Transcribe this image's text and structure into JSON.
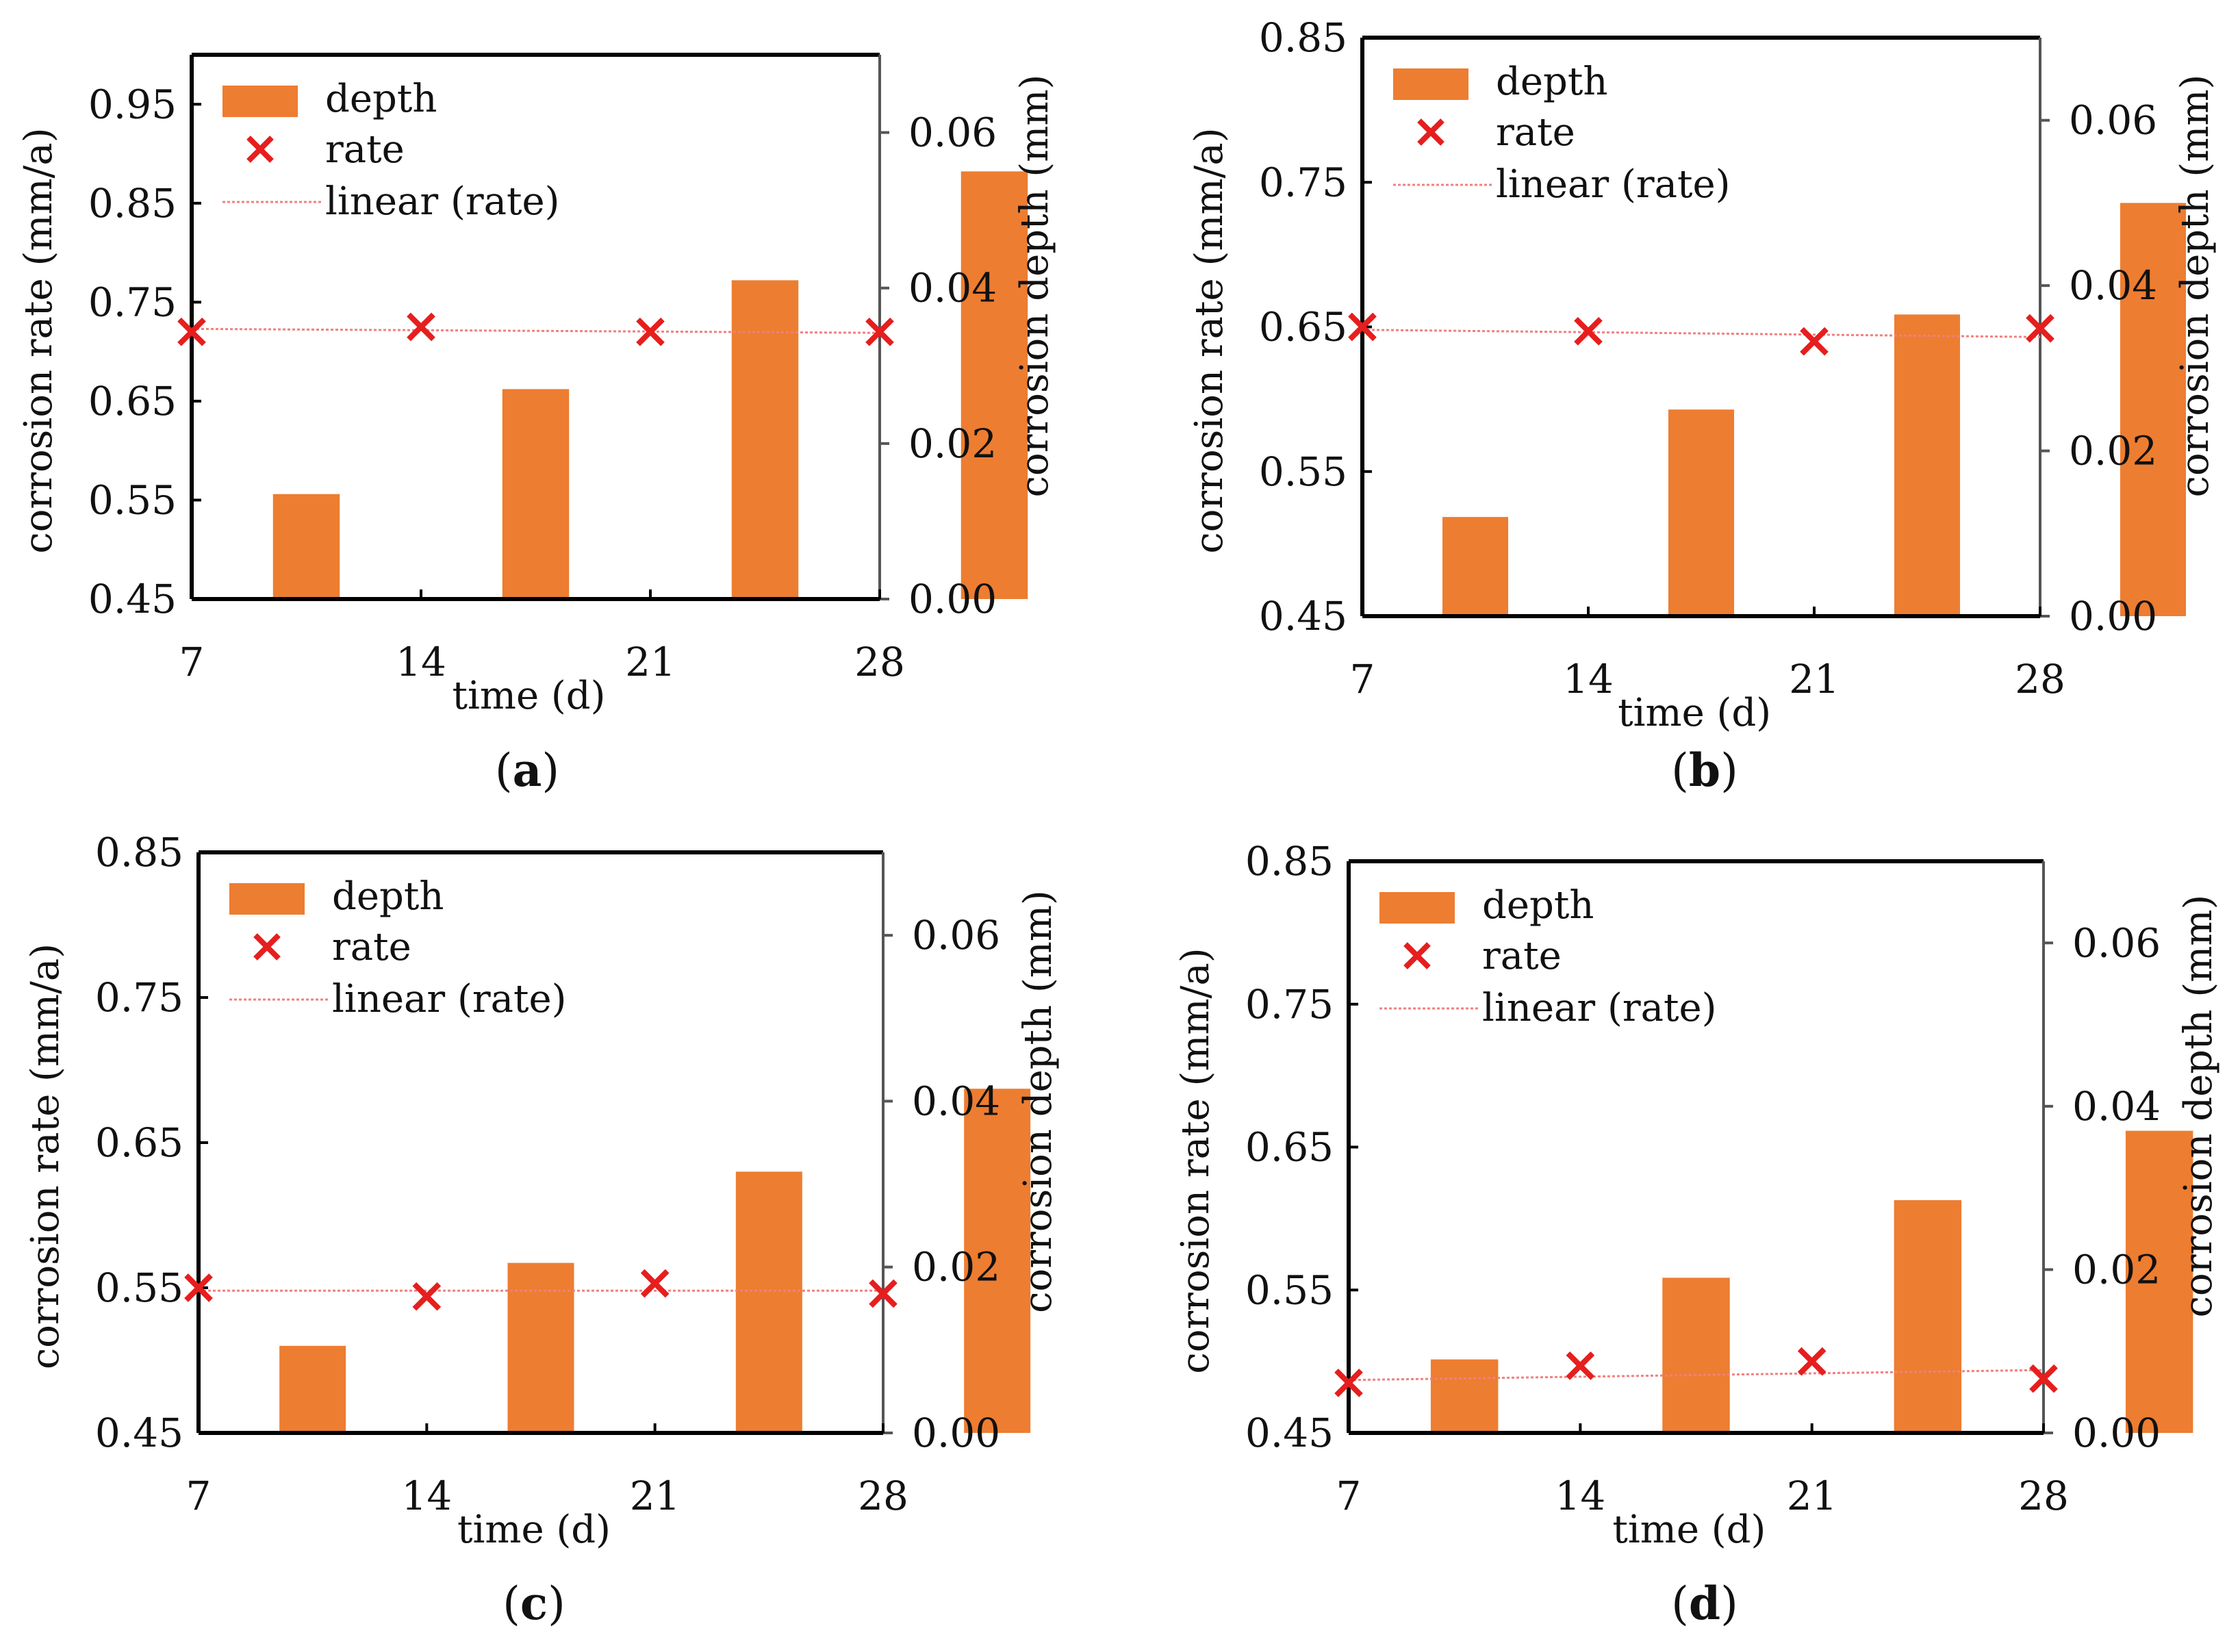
{
  "colors": {
    "bar": "#ED7D31",
    "rate_marker": "#E61E1E",
    "trend": "#F08080",
    "axis": "#000000"
  },
  "chart_data": [
    {
      "type": "bar+scatter",
      "caption_letter": "a",
      "x_ticks": [
        "7",
        "14",
        "21",
        "28"
      ],
      "xlabel": "time (d)",
      "ylabel_left": "corrosion rate (mm/a)",
      "ylabel_right": "corrosion depth (mm)",
      "ylim_left": [
        0.45,
        1.0
      ],
      "left_ticks": [
        "0.45",
        "0.55",
        "0.65",
        "0.75",
        "0.85",
        "0.95"
      ],
      "ylim_right": [
        0.0,
        0.07
      ],
      "right_ticks": [
        "0.00",
        "0.02",
        "0.04",
        "0.06"
      ],
      "grid": false,
      "legend": {
        "placement": "top-left",
        "entries": [
          "depth",
          "rate",
          "linear (rate)"
        ]
      },
      "depth": {
        "name": "depth",
        "x": [
          10.5,
          17.5,
          24.5,
          31.5
        ],
        "values": [
          0.0135,
          0.027,
          0.041,
          0.055
        ]
      },
      "rate": {
        "name": "rate",
        "x": [
          7,
          14,
          21,
          28
        ],
        "values": [
          0.72,
          0.725,
          0.72,
          0.72
        ]
      },
      "trend": {
        "name": "linear (rate)",
        "start": 0.723,
        "end": 0.719
      }
    },
    {
      "type": "bar+scatter",
      "caption_letter": "b",
      "x_ticks": [
        "7",
        "14",
        "21",
        "28"
      ],
      "xlabel": "time (d)",
      "ylabel_left": "corrosion rate (mm/a)",
      "ylabel_right": "corrosion depth (mm)",
      "ylim_left": [
        0.45,
        0.85
      ],
      "left_ticks": [
        "0.45",
        "0.55",
        "0.65",
        "0.75",
        "0.85"
      ],
      "ylim_right": [
        0.0,
        0.07
      ],
      "right_ticks": [
        "0.00",
        "0.02",
        "0.04",
        "0.06"
      ],
      "grid": false,
      "legend": {
        "placement": "top-left",
        "entries": [
          "depth",
          "rate",
          "linear (rate)"
        ]
      },
      "depth": {
        "name": "depth",
        "x": [
          10.5,
          17.5,
          24.5,
          31.5
        ],
        "values": [
          0.012,
          0.025,
          0.0365,
          0.05
        ]
      },
      "rate": {
        "name": "rate",
        "x": [
          7,
          14,
          21,
          28
        ],
        "values": [
          0.65,
          0.647,
          0.64,
          0.649
        ]
      },
      "trend": {
        "name": "linear (rate)",
        "start": 0.648,
        "end": 0.643
      }
    },
    {
      "type": "bar+scatter",
      "caption_letter": "c",
      "x_ticks": [
        "7",
        "14",
        "21",
        "28"
      ],
      "xlabel": "time (d)",
      "ylabel_left": "corrosion rate (mm/a)",
      "ylabel_right": "corrosion depth (mm)",
      "ylim_left": [
        0.45,
        0.85
      ],
      "left_ticks": [
        "0.45",
        "0.55",
        "0.65",
        "0.75",
        "0.85"
      ],
      "ylim_right": [
        0.0,
        0.07
      ],
      "right_ticks": [
        "0.00",
        "0.02",
        "0.04",
        "0.06"
      ],
      "grid": false,
      "legend": {
        "placement": "top-left",
        "entries": [
          "depth",
          "rate",
          "linear (rate)"
        ]
      },
      "depth": {
        "name": "depth",
        "x": [
          10.5,
          17.5,
          24.5,
          31.5
        ],
        "values": [
          0.0105,
          0.0205,
          0.0315,
          0.0415
        ]
      },
      "rate": {
        "name": "rate",
        "x": [
          7,
          14,
          21,
          28
        ],
        "values": [
          0.55,
          0.544,
          0.553,
          0.546
        ]
      },
      "trend": {
        "name": "linear (rate)",
        "start": 0.548,
        "end": 0.548
      }
    },
    {
      "type": "bar+scatter",
      "caption_letter": "d",
      "x_ticks": [
        "7",
        "14",
        "21",
        "28"
      ],
      "xlabel": "time (d)",
      "ylabel_left": "corrosion rate (mm/a)",
      "ylabel_right": "corrosion depth (mm)",
      "ylim_left": [
        0.45,
        0.85
      ],
      "left_ticks": [
        "0.45",
        "0.55",
        "0.65",
        "0.75",
        "0.85"
      ],
      "ylim_right": [
        0.0,
        0.07
      ],
      "right_ticks": [
        "0.00",
        "0.02",
        "0.04",
        "0.06"
      ],
      "grid": false,
      "legend": {
        "placement": "top-left",
        "entries": [
          "depth",
          "rate",
          "linear (rate)"
        ]
      },
      "depth": {
        "name": "depth",
        "x": [
          10.5,
          17.5,
          24.5,
          31.5
        ],
        "values": [
          0.009,
          0.019,
          0.0285,
          0.037
        ]
      },
      "rate": {
        "name": "rate",
        "x": [
          7,
          14,
          21,
          28
        ],
        "values": [
          0.485,
          0.497,
          0.5,
          0.488
        ]
      },
      "trend": {
        "name": "linear (rate)",
        "start": 0.487,
        "end": 0.494
      }
    }
  ]
}
